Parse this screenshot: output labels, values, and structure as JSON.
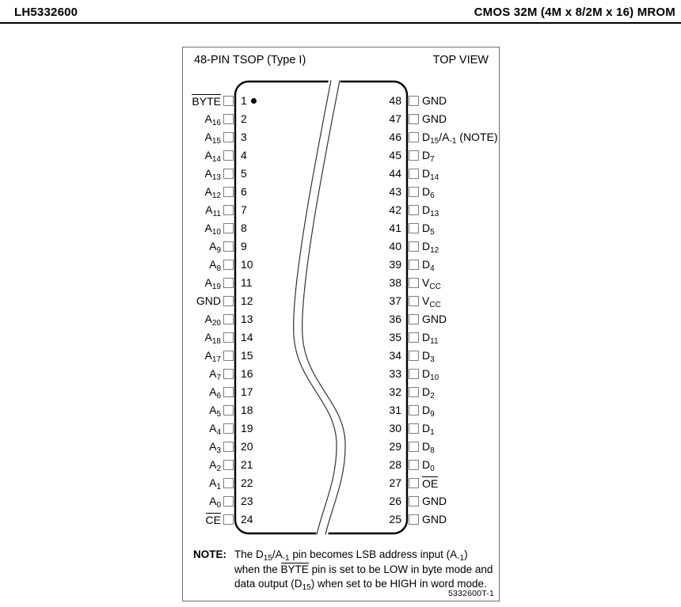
{
  "header": {
    "left": "LH5332600",
    "right": "CMOS 32M (4M x 8/2M x 16) MROM"
  },
  "diagram": {
    "package_title": "48-PIN TSOP (Type I)",
    "view_label": "TOP VIEW",
    "figure_code": "5332600T-1",
    "left_pins": [
      {
        "num": 1,
        "label": "~BYTE~",
        "first_pin": true
      },
      {
        "num": 2,
        "label": "A_{16}"
      },
      {
        "num": 3,
        "label": "A_{15}"
      },
      {
        "num": 4,
        "label": "A_{14}"
      },
      {
        "num": 5,
        "label": "A_{13}"
      },
      {
        "num": 6,
        "label": "A_{12}"
      },
      {
        "num": 7,
        "label": "A_{11}"
      },
      {
        "num": 8,
        "label": "A_{10}"
      },
      {
        "num": 9,
        "label": "A_{9}"
      },
      {
        "num": 10,
        "label": "A_{8}"
      },
      {
        "num": 11,
        "label": "A_{19}"
      },
      {
        "num": 12,
        "label": "GND"
      },
      {
        "num": 13,
        "label": "A_{20}"
      },
      {
        "num": 14,
        "label": "A_{18}"
      },
      {
        "num": 15,
        "label": "A_{17}"
      },
      {
        "num": 16,
        "label": "A_{7}"
      },
      {
        "num": 17,
        "label": "A_{6}"
      },
      {
        "num": 18,
        "label": "A_{5}"
      },
      {
        "num": 19,
        "label": "A_{4}"
      },
      {
        "num": 20,
        "label": "A_{3}"
      },
      {
        "num": 21,
        "label": "A_{2}"
      },
      {
        "num": 22,
        "label": "A_{1}"
      },
      {
        "num": 23,
        "label": "A_{0}"
      },
      {
        "num": 24,
        "label": "~CE~"
      }
    ],
    "right_pins": [
      {
        "num": 48,
        "label": "GND"
      },
      {
        "num": 47,
        "label": "GND"
      },
      {
        "num": 46,
        "label": "D_{15}/A_{-1} (NOTE)"
      },
      {
        "num": 45,
        "label": "D_{7}"
      },
      {
        "num": 44,
        "label": "D_{14}"
      },
      {
        "num": 43,
        "label": "D_{6}"
      },
      {
        "num": 42,
        "label": "D_{13}"
      },
      {
        "num": 41,
        "label": "D_{5}"
      },
      {
        "num": 40,
        "label": "D_{12}"
      },
      {
        "num": 39,
        "label": "D_{4}"
      },
      {
        "num": 38,
        "label": "V_{CC}"
      },
      {
        "num": 37,
        "label": "V_{CC}"
      },
      {
        "num": 36,
        "label": "GND"
      },
      {
        "num": 35,
        "label": "D_{11}"
      },
      {
        "num": 34,
        "label": "D_{3}"
      },
      {
        "num": 33,
        "label": "D_{10}"
      },
      {
        "num": 32,
        "label": "D_{2}"
      },
      {
        "num": 31,
        "label": "D_{9}"
      },
      {
        "num": 30,
        "label": "D_{1}"
      },
      {
        "num": 29,
        "label": "D_{8}"
      },
      {
        "num": 28,
        "label": "D_{0}"
      },
      {
        "num": 27,
        "label": "~OE~"
      },
      {
        "num": 26,
        "label": "GND"
      },
      {
        "num": 25,
        "label": "GND"
      }
    ],
    "note": {
      "label": "NOTE:",
      "lines": [
        "The D_{15}/A_{-1} pin becomes LSB address input (A_{-1})",
        "when the ~BYTE~ pin is set to be LOW in byte mode and",
        "data output (D_{15}) when set to be HIGH in word mode."
      ]
    }
  },
  "colors": {
    "text": "#000000",
    "chip_outline": "#000000",
    "pad_border": "#7f7f7f",
    "box_border": "#6e6e6e"
  }
}
